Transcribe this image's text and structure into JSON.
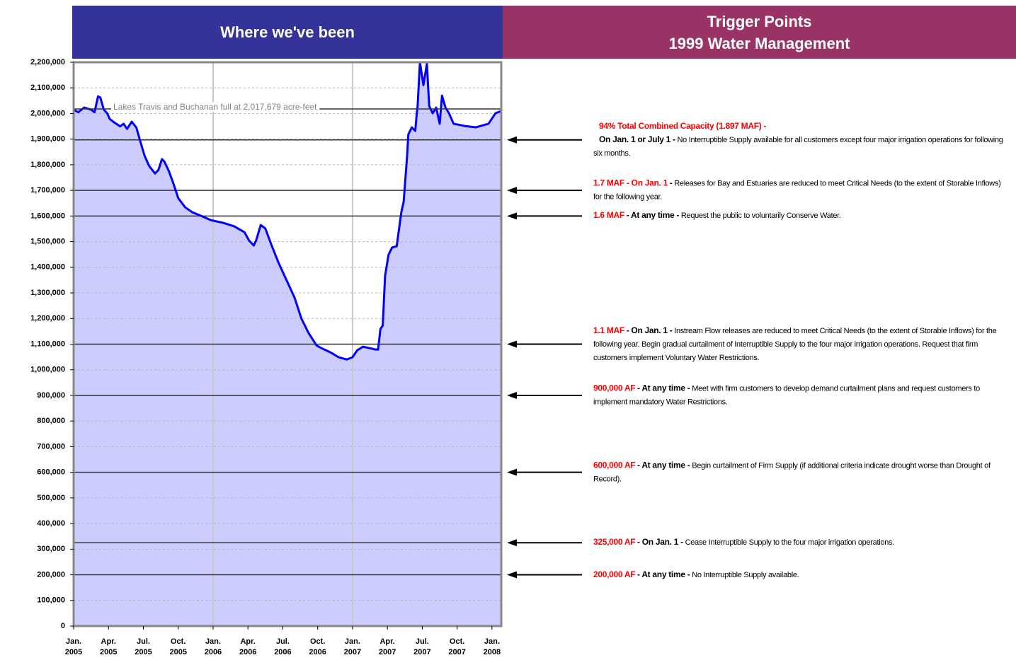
{
  "chart_data": {
    "type": "area",
    "header": {
      "left": "Where we've been",
      "right": [
        "Trigger Points",
        "1999 Water Management"
      ]
    },
    "fill_color": "#ccccff",
    "line_color": "#0000ff",
    "grid": true,
    "x": [
      0,
      0.4,
      0.9,
      1.5,
      1.8,
      2.1,
      2.3,
      2.6,
      2.9,
      3.1,
      3.5,
      4.0,
      4.3,
      4.6,
      5.0,
      5.4,
      5.7,
      6.1,
      6.5,
      7.0,
      7.3,
      7.6,
      7.8,
      8.2,
      8.6,
      9.0,
      9.6,
      10.2,
      11.0,
      11.8,
      12.9,
      13.8,
      14.7,
      15.1,
      15.5,
      15.7,
      16.1,
      16.5,
      17.0,
      17.6,
      18.3,
      19.0,
      19.6,
      20.2,
      20.9,
      21.3,
      22.1,
      22.8,
      23.5,
      24.0,
      24.4,
      24.9,
      25.4,
      26.0,
      26.2,
      26.4,
      26.6,
      26.8,
      27.1,
      27.4,
      27.8,
      28.2,
      28.4,
      28.7,
      28.8,
      29.1,
      29.4,
      29.5,
      29.6,
      29.8,
      30.1,
      30.4,
      30.6,
      30.9,
      31.2,
      31.5,
      31.7,
      32.0,
      32.3,
      32.7,
      33.7,
      34.6,
      35.7,
      36.3,
      36.8
    ],
    "values": [
      2015000,
      2005000,
      2023000,
      2015000,
      2005000,
      2067000,
      2062000,
      2015000,
      2000000,
      1979000,
      1965000,
      1950000,
      1960000,
      1940000,
      1968000,
      1945000,
      1897000,
      1836000,
      1795000,
      1766000,
      1780000,
      1822000,
      1813000,
      1775000,
      1725000,
      1670000,
      1634000,
      1615000,
      1600000,
      1584000,
      1573000,
      1560000,
      1537000,
      1504000,
      1485000,
      1504000,
      1565000,
      1551000,
      1490000,
      1421000,
      1352000,
      1283000,
      1200000,
      1145000,
      1095000,
      1085000,
      1068000,
      1049000,
      1040000,
      1049000,
      1076000,
      1090000,
      1085000,
      1079000,
      1079000,
      1159000,
      1173000,
      1366000,
      1449000,
      1477000,
      1482000,
      1615000,
      1656000,
      1836000,
      1918000,
      1946000,
      1932000,
      1987000,
      2029000,
      2200000,
      2111000,
      2194000,
      2029000,
      2001000,
      2023000,
      1960000,
      2070000,
      2023000,
      2001000,
      1960000,
      1951000,
      1946000,
      1960000,
      2001000,
      2010000
    ],
    "xlim": [
      0,
      36.8
    ],
    "xticks": [
      {
        "value": 0,
        "label": "Jan. 2005"
      },
      {
        "value": 3,
        "label": "Apr. 2005"
      },
      {
        "value": 6,
        "label": "Jul. 2005"
      },
      {
        "value": 9,
        "label": "Oct. 2005"
      },
      {
        "value": 12,
        "label": "Jan. 2006"
      },
      {
        "value": 15,
        "label": "Apr. 2006"
      },
      {
        "value": 18,
        "label": "Jul. 2006"
      },
      {
        "value": 21,
        "label": "Oct. 2006"
      },
      {
        "value": 24,
        "label": "Jan. 2007"
      },
      {
        "value": 27,
        "label": "Apr. 2007"
      },
      {
        "value": 30,
        "label": "Jul. 2007"
      },
      {
        "value": 33,
        "label": "Oct. 2007"
      },
      {
        "value": 36,
        "label": "Jan. 2008"
      }
    ],
    "xgrid": [
      12,
      24
    ],
    "ylim": [
      0,
      2200000
    ],
    "yticks": [
      0,
      {
        "value": 100000,
        "label": "100,000"
      },
      {
        "value": 200000,
        "label": "200,000"
      },
      {
        "value": 300000,
        "label": "300,000"
      },
      {
        "value": 400000,
        "label": "400,000"
      },
      {
        "value": 500000,
        "label": "500,000"
      },
      {
        "value": 600000,
        "label": "600,000"
      },
      {
        "value": 700000,
        "label": "700,000"
      },
      {
        "value": 800000,
        "label": "800,000"
      },
      {
        "value": 900000,
        "label": "900,000"
      },
      {
        "value": 1000000,
        "label": "1,000,000"
      },
      {
        "value": 1100000,
        "label": "1,100,000"
      },
      {
        "value": 1200000,
        "label": "1,200,000"
      },
      {
        "value": 1300000,
        "label": "1,300,000"
      },
      {
        "value": 1400000,
        "label": "1,400,000"
      },
      {
        "value": 1500000,
        "label": "1,500,000"
      },
      {
        "value": 1600000,
        "label": "1,600,000"
      },
      {
        "value": 1700000,
        "label": "1,700,000"
      },
      {
        "value": 1800000,
        "label": "1,800,000"
      },
      {
        "value": 1900000,
        "label": "1,900,000"
      },
      {
        "value": 2000000,
        "label": "2,000,000"
      },
      {
        "value": 2100000,
        "label": "2,100,000"
      },
      {
        "value": 2200000,
        "label": "2,200,000"
      }
    ],
    "full_line": {
      "value": 2017679,
      "label": "Lakes Travis and Buchanan full at 2,017,679 acre-feet"
    },
    "triggers": [
      {
        "value": 1897000,
        "red": "94% Total Combined Capacity (1.897 MAF) -",
        "bold": "On Jan. 1 or July 1 -",
        "text": "No Interruptible Supply available for all customers except four major irrigation operations for following six months."
      },
      {
        "value": 1700000,
        "red": "1.7 MAF - On Jan. 1",
        "bold": "-",
        "text": "Releases for Bay and Estuaries are reduced to meet Critical Needs (to the extent of Storable Inflows) for the following year."
      },
      {
        "value": 1600000,
        "red": "1.6 MAF",
        "bold": "- At any time -",
        "text": "Request the public to voluntarily Conserve Water."
      },
      {
        "value": 1100000,
        "red": "1.1 MAF",
        "bold": "- On Jan. 1 -",
        "text": "Instream Flow releases are reduced to meet Critical Needs (to the extent of Storable Inflows) for the following year.  Begin gradual curtailment of Interruptible Supply to the four major irrigation operations. Request that firm customers implement Voluntary Water Restrictions."
      },
      {
        "value": 900000,
        "red": "900,000 AF",
        "bold": "- At any time -",
        "text": "Meet with firm customers to develop demand curtailment plans and request customers to implement mandatory Water Restrictions."
      },
      {
        "value": 600000,
        "red": "600,000 AF",
        "bold": "- At any time -",
        "text": "Begin curtailment of Firm Supply (if additional criteria indicate drought worse than Drought of Record)."
      },
      {
        "value": 325000,
        "red": "325,000 AF",
        "bold": "- On Jan. 1 -",
        "text": "Cease Interruptible Supply to the four major irrigation operations."
      },
      {
        "value": 200000,
        "red": "200,000 AF",
        "bold": "- At any time -",
        "text": "No Interruptible Supply available."
      }
    ]
  }
}
